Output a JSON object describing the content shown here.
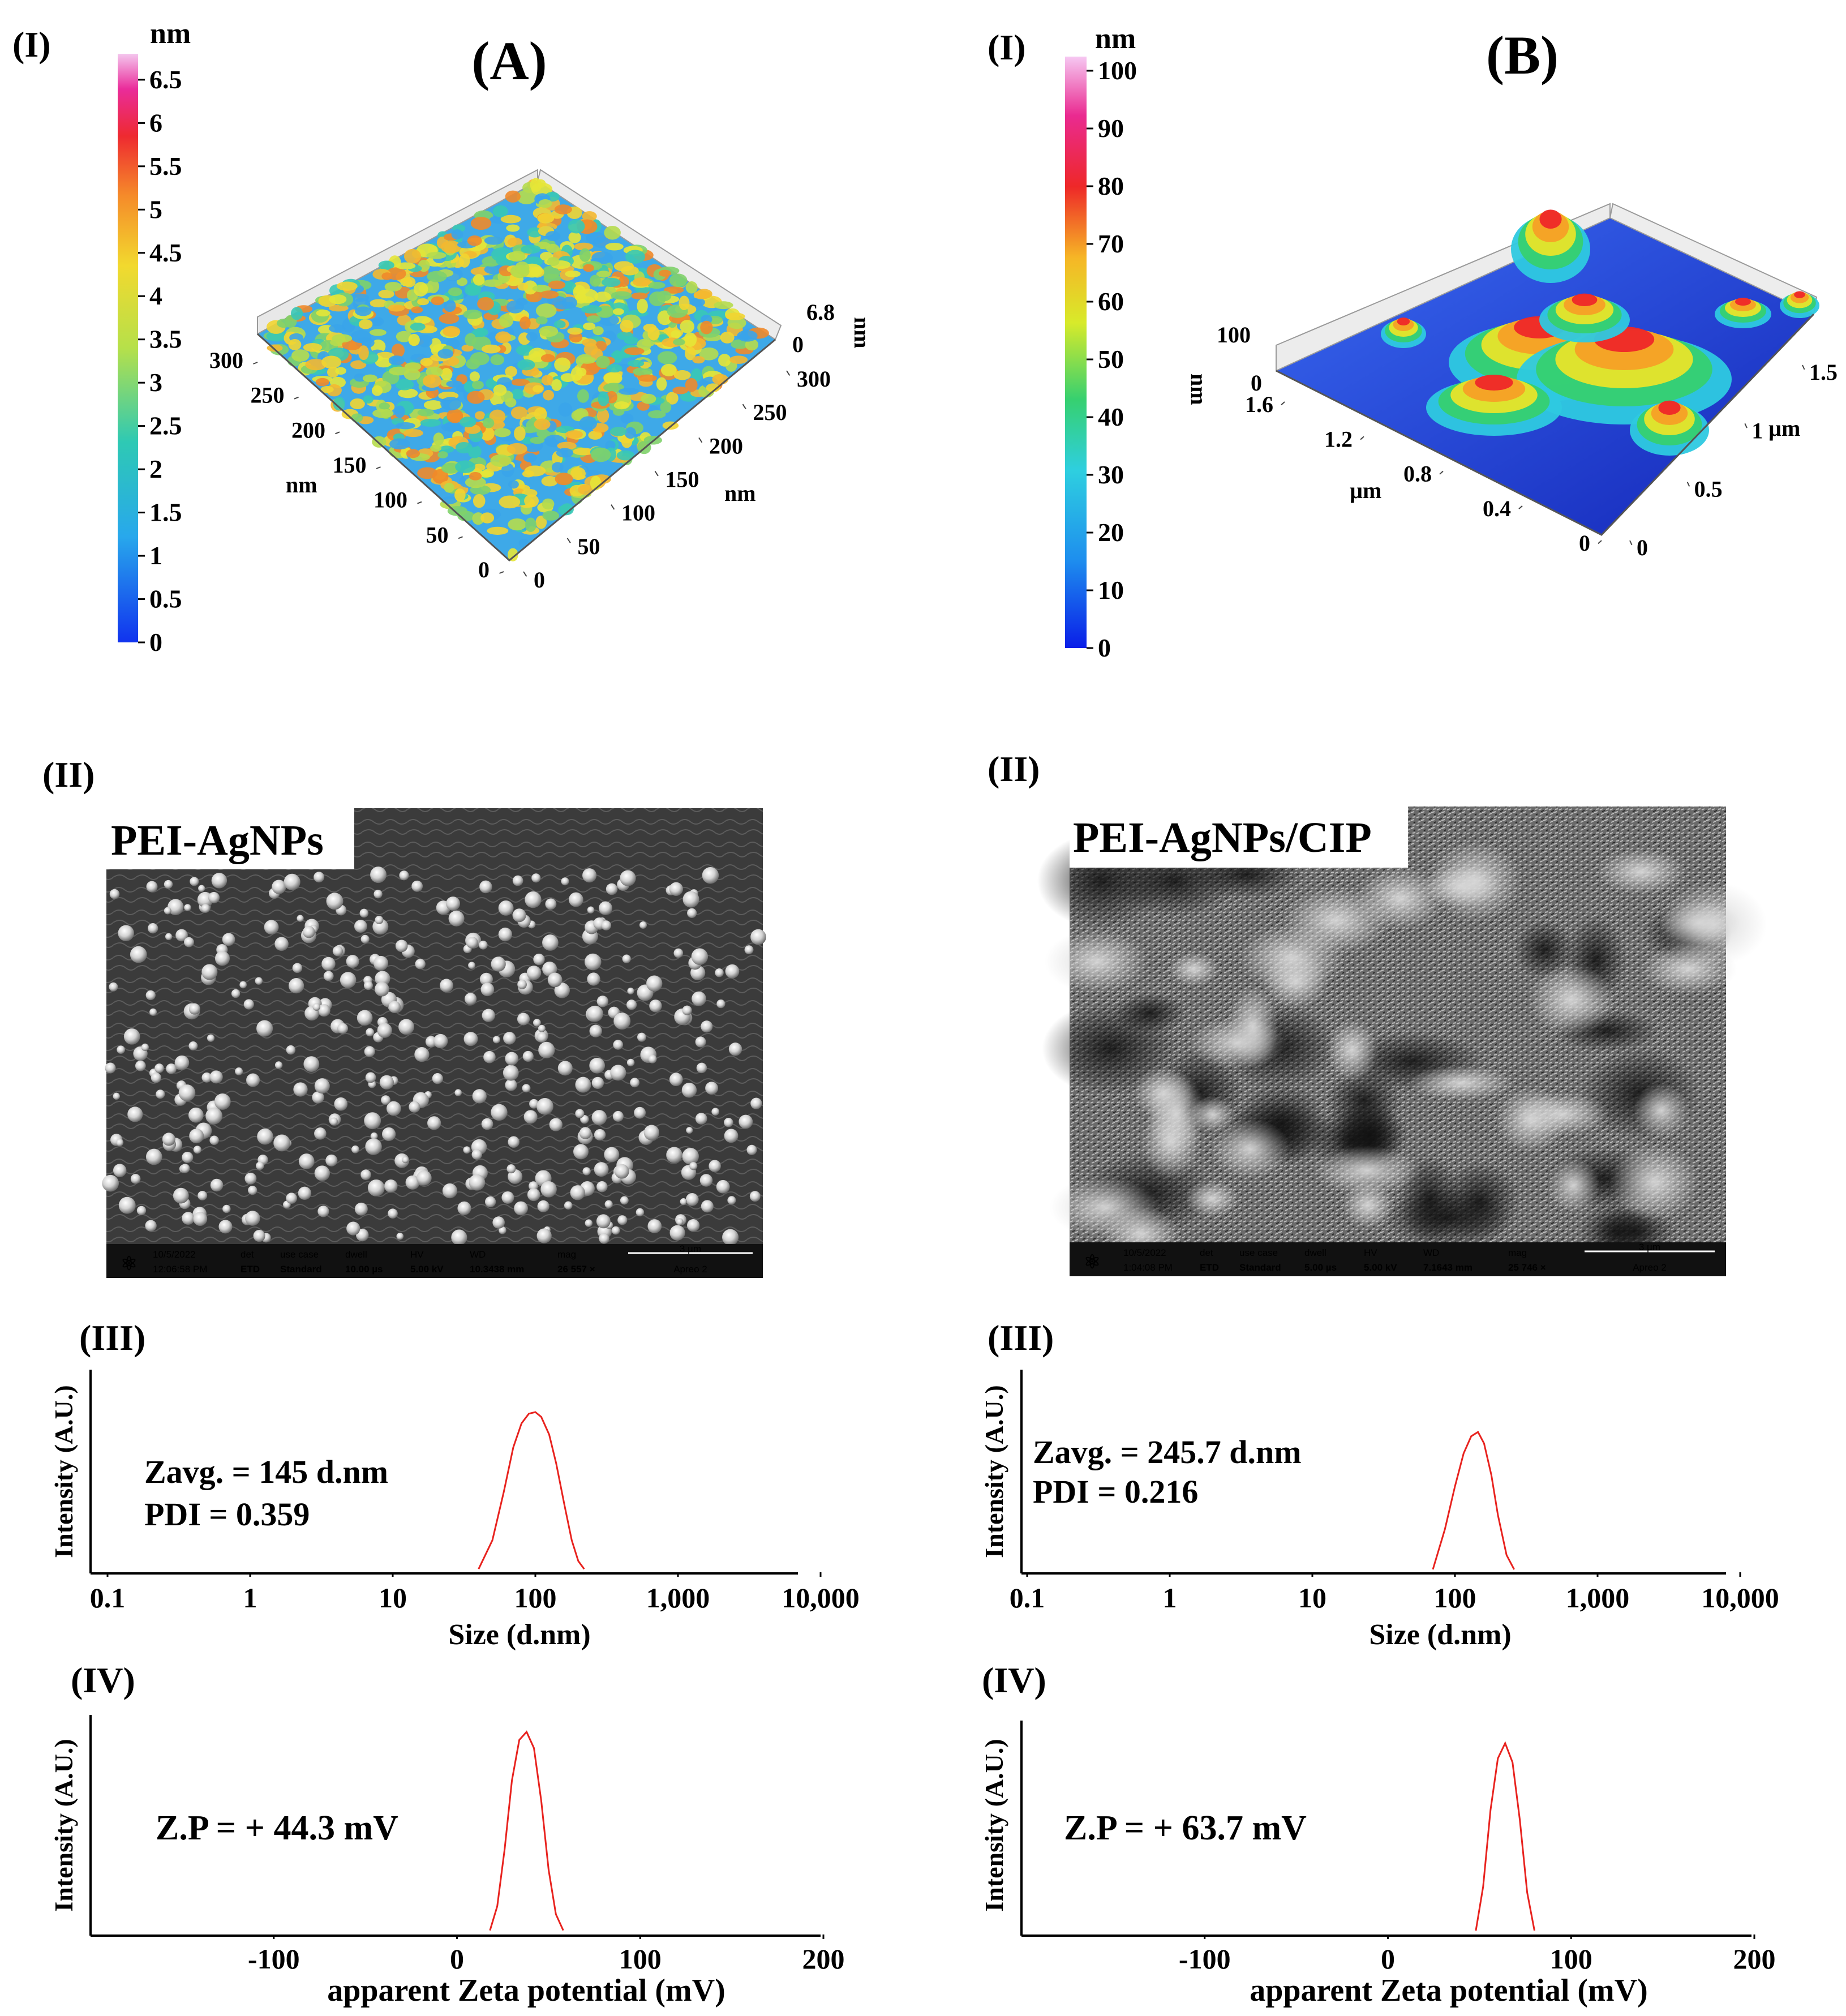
{
  "panels": [
    {
      "key": "A",
      "letter": "(A)",
      "afm": {
        "label": "(I)",
        "unit": "nm",
        "colorbar_ticks": [
          "0",
          "0.5",
          "1",
          "1.5",
          "2",
          "2.5",
          "3",
          "3.5",
          "4",
          "4.5",
          "5",
          "5.5",
          "6",
          "6.5"
        ],
        "colorbar_max": 6.8,
        "z_labels": [
          "6.8",
          "0"
        ],
        "z_unit": "nm",
        "left_axis_ticks": [
          "300",
          "250",
          "200",
          "150",
          "100",
          "50",
          "0"
        ],
        "left_axis_unit": "nm",
        "right_axis_ticks": [
          "0",
          "50",
          "100",
          "150",
          "200",
          "250",
          "300"
        ],
        "right_axis_unit": "nm"
      },
      "sem": {
        "label": "(II)",
        "title": "PEI-AgNPs",
        "bar": {
          "date": "10/5/2022",
          "time": "12:06:58 PM",
          "det": "ETD",
          "use_case": "Standard",
          "dwell": "10.00 µs",
          "hv": "5.00 kV",
          "wd": "10.3438 mm",
          "mag": "26 557 ×",
          "scale": "3 µm",
          "instrument": "Apreo 2"
        }
      },
      "dls": {
        "label": "(III)",
        "zavg": "Zavg. = 145 d.nm",
        "pdi": "PDI = 0.359",
        "ylabel": "Intensity (A.U.)",
        "xlabel": "Size (d.nm)",
        "ticks": [
          "0.1",
          "1",
          "10",
          "100",
          "1,000",
          "10,000"
        ]
      },
      "zeta": {
        "label": "(IV)",
        "value": "Z.P = + 44.3 mV",
        "ylabel": "Intensity (A.U.)",
        "xlabel": "apparent Zeta potential (mV)",
        "ticks": [
          "-100",
          "0",
          "100",
          "200"
        ]
      }
    },
    {
      "key": "B",
      "letter": "(B)",
      "afm": {
        "label": "(I)",
        "unit": "nm",
        "colorbar_ticks": [
          "0",
          "10",
          "20",
          "30",
          "40",
          "50",
          "60",
          "70",
          "80",
          "90",
          "100"
        ],
        "z_labels": [
          "100",
          "0"
        ],
        "z_unit": "nm",
        "left_axis_ticks": [
          "1.6",
          "1.2",
          "0.8",
          "0.4",
          "0"
        ],
        "left_axis_unit": "µm",
        "right_axis_ticks": [
          "0",
          "0.5",
          "1",
          "1.5"
        ],
        "right_axis_unit": "µm"
      },
      "sem": {
        "label": "(II)",
        "title": "PEI-AgNPs/CIP",
        "bar": {
          "date": "10/5/2022",
          "time": "1:04:08 PM",
          "det": "ETD",
          "use_case": "Standard",
          "dwell": "5.00 µs",
          "hv": "5.00 kV",
          "wd": "7.1643 mm",
          "mag": "25 746 ×",
          "scale": "3 µm",
          "instrument": "Apreo 2"
        }
      },
      "dls": {
        "label": "(III)",
        "zavg": "Zavg. = 245.7 d.nm",
        "pdi": "PDI = 0.216",
        "ylabel": "Intensity (A.U.)",
        "xlabel": "Size (d.nm)",
        "ticks": [
          "0.1",
          "1",
          "10",
          "100",
          "1,000",
          "10,000"
        ]
      },
      "zeta": {
        "label": "(IV)",
        "value": "Z.P = + 63.7 mV",
        "ylabel": "Intensity (A.U.)",
        "xlabel": "apparent Zeta potential (mV)",
        "ticks": [
          "-100",
          "0",
          "100",
          "200"
        ]
      }
    }
  ],
  "sem_bar_headers": {
    "det": "det",
    "use_case": "use case",
    "dwell": "dwell",
    "hv": "HV",
    "wd": "WD",
    "mag": "mag"
  },
  "colors": {
    "curve": "#e8231f",
    "axis": "#000000",
    "afm_low": "#1a3fe0",
    "afm_high": "#e0209a"
  },
  "chart_data": [
    {
      "type": "line",
      "panel": "A-III",
      "xscale": "log",
      "xlim": [
        0.1,
        10000
      ],
      "xlabel": "Size (d.nm)",
      "ylabel": "Intensity (A.U.)",
      "x": [
        40,
        50,
        60,
        70,
        80,
        90,
        100,
        110,
        125,
        140,
        160,
        180,
        200,
        220
      ],
      "y": [
        0.02,
        0.2,
        0.5,
        0.78,
        0.93,
        0.99,
        1.0,
        0.97,
        0.86,
        0.68,
        0.42,
        0.2,
        0.07,
        0.02
      ]
    },
    {
      "type": "line",
      "panel": "B-III",
      "xscale": "log",
      "xlim": [
        0.1,
        10000
      ],
      "xlabel": "Size (d.nm)",
      "ylabel": "Intensity (A.U.)",
      "x": [
        70,
        85,
        100,
        115,
        130,
        145,
        160,
        180,
        200,
        230,
        260
      ],
      "y": [
        0.02,
        0.3,
        0.6,
        0.83,
        0.95,
        0.98,
        0.9,
        0.68,
        0.4,
        0.12,
        0.02
      ]
    },
    {
      "type": "line",
      "panel": "A-IV",
      "xlim": [
        -200,
        200
      ],
      "xlabel": "apparent Zeta potential (mV)",
      "ylabel": "Intensity (A.U.)",
      "x": [
        18,
        22,
        26,
        30,
        34,
        38,
        42,
        46,
        50,
        54,
        58
      ],
      "y": [
        0.02,
        0.14,
        0.42,
        0.76,
        0.96,
        1.0,
        0.92,
        0.66,
        0.32,
        0.1,
        0.02
      ]
    },
    {
      "type": "line",
      "panel": "B-IV",
      "xlim": [
        -200,
        200
      ],
      "xlabel": "apparent Zeta potential (mV)",
      "ylabel": "Intensity (A.U.)",
      "x": [
        48,
        52,
        56,
        60,
        64,
        68,
        72,
        76,
        80
      ],
      "y": [
        0.02,
        0.25,
        0.65,
        0.92,
        1.0,
        0.9,
        0.6,
        0.22,
        0.02
      ]
    }
  ]
}
